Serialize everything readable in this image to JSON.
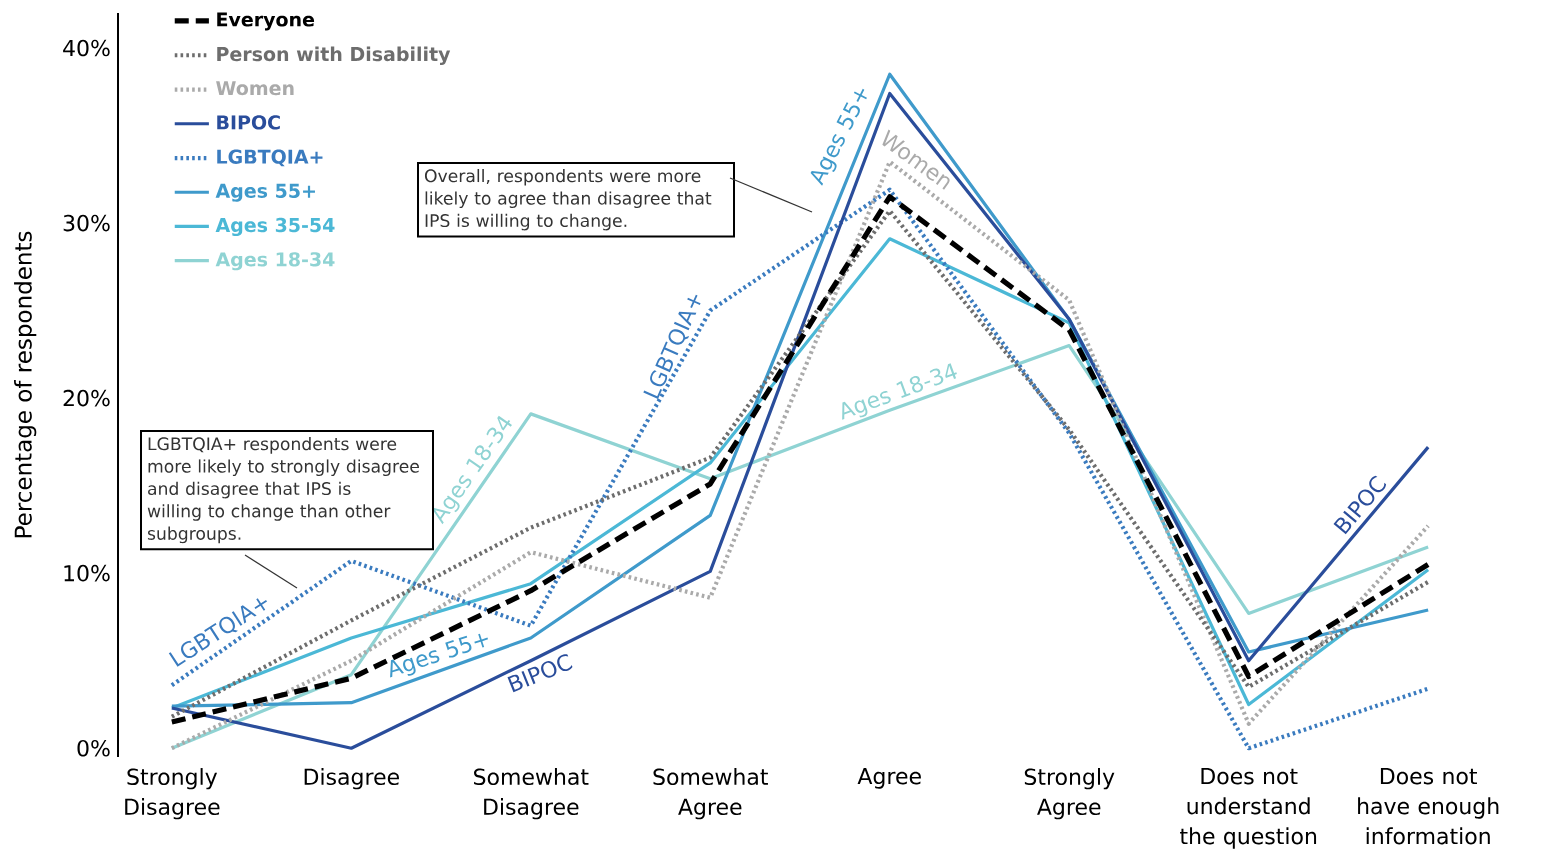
{
  "chart_data": {
    "type": "line",
    "ylabel": "Percentage of respondents",
    "categories": [
      "Strongly Disagree",
      "Disagree",
      "Somewhat Disagree",
      "Somewhat Agree",
      "Agree",
      "Strongly Agree",
      "Does not understand the question",
      "Does not have enough information"
    ],
    "ylim": [
      -0.5,
      42
    ],
    "yticks": [
      {
        "value": 0,
        "label": "0%"
      },
      {
        "value": 10,
        "label": "10%"
      },
      {
        "value": 20,
        "label": "20%"
      },
      {
        "value": 30,
        "label": "30%"
      },
      {
        "value": 40,
        "label": "40%"
      }
    ],
    "legend": "top left",
    "series": [
      {
        "name": "Everyone",
        "color": "#000000",
        "line_style": "dashed",
        "values": [
          1.5,
          4.0,
          9.0,
          15.1,
          31.5,
          23.9,
          4.1,
          10.5
        ]
      },
      {
        "name": "Person with Disability",
        "color": "#6d6d6d",
        "line_style": "dotted",
        "values": [
          1.8,
          7.3,
          12.6,
          16.6,
          30.7,
          18.2,
          3.5,
          9.5
        ]
      },
      {
        "name": "Women",
        "color": "#aaaaaa",
        "line_style": "dotted",
        "values": [
          0,
          5.0,
          11.2,
          8.6,
          33.5,
          25.6,
          1.4,
          12.7
        ]
      },
      {
        "name": "BIPOC",
        "color": "#2a4d9b",
        "line_style": "solid",
        "values": [
          2.3,
          0,
          5.0,
          10.1,
          37.4,
          24.5,
          5.0,
          17.2
        ]
      },
      {
        "name": "LGBTQIA+",
        "color": "#3a7bbf",
        "line_style": "dotted",
        "values": [
          3.6,
          10.7,
          7.0,
          25.0,
          31.9,
          18.0,
          0,
          3.4
        ]
      },
      {
        "name": "Ages 55+",
        "color": "#3f9acb",
        "line_style": "solid",
        "values": [
          2.4,
          2.6,
          6.3,
          13.3,
          38.5,
          24.5,
          5.5,
          7.9
        ]
      },
      {
        "name": "Ages 35-54",
        "color": "#4bb8d6",
        "line_style": "solid",
        "values": [
          2.3,
          6.3,
          9.4,
          16.3,
          29.1,
          24.3,
          2.5,
          10.2
        ]
      },
      {
        "name": "Ages 18-34",
        "color": "#8fd3d3",
        "line_style": "solid",
        "values": [
          0,
          4.2,
          19.1,
          15.4,
          19.3,
          23.0,
          7.7,
          11.5
        ]
      }
    ],
    "annotations": [
      "LGBTQIA+ respondents were more likely to strongly disagree and disagree that IPS is willing to change than other subgroups.",
      "Overall, respondents were more likely to agree than disagree that IPS is willing to change.",
      "LGBTQIA+",
      "Ages 55+",
      "BIPOC",
      "Ages 18-34",
      "LGBTQIA+",
      "Ages 55+",
      "Women",
      "Ages 18-34",
      "BIPOC"
    ]
  }
}
